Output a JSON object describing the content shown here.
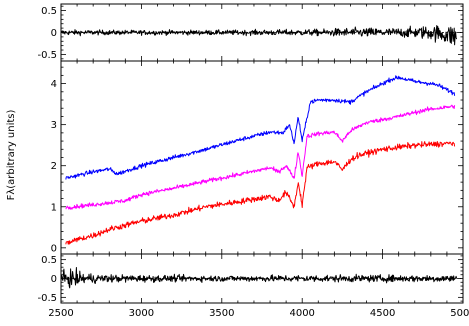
{
  "chart_data": [
    {
      "type": "line",
      "panel": "top-residual",
      "xlim": [
        2500,
        5000
      ],
      "ylim": [
        -0.65,
        0.65
      ],
      "yticks": [
        -0.5,
        0,
        0.5
      ],
      "ytick_labels": [
        "-0.5",
        "0",
        "0.5"
      ],
      "grid": false,
      "zero_line": "dotted",
      "series": [
        {
          "color": "#000000",
          "x": [
            2500,
            2750,
            3000,
            3250,
            3500,
            3750,
            4000,
            4150,
            4250,
            4400,
            4550,
            4700,
            4800,
            4900,
            4960
          ],
          "y": [
            0,
            0,
            0,
            0,
            0,
            0,
            0,
            0,
            0,
            0,
            0,
            0,
            0,
            -0.05,
            -0.1
          ],
          "amplitude": [
            0.08,
            0.07,
            0.07,
            0.07,
            0.07,
            0.08,
            0.09,
            0.1,
            0.13,
            0.14,
            0.13,
            0.16,
            0.22,
            0.28,
            0.38
          ]
        }
      ]
    },
    {
      "type": "line",
      "panel": "main",
      "ylabel": "Fλ(arbitrary units)",
      "xlim": [
        2500,
        5000
      ],
      "ylim": [
        -0.15,
        4.55
      ],
      "yticks": [
        0,
        1,
        2,
        3,
        4
      ],
      "ytick_labels": [
        "0",
        "1",
        "2",
        "3",
        "4"
      ],
      "grid": false,
      "series": [
        {
          "color": "#0000ff",
          "x": [
            2530,
            2700,
            2800,
            2850,
            3000,
            3200,
            3400,
            3600,
            3800,
            3880,
            3920,
            3950,
            3975,
            4000,
            4050,
            4100,
            4200,
            4300,
            4400,
            4450,
            4500,
            4550,
            4600,
            4700,
            4800,
            4850,
            4950
          ],
          "y": [
            1.7,
            1.85,
            1.92,
            1.8,
            2.0,
            2.2,
            2.4,
            2.62,
            2.82,
            2.8,
            3.0,
            2.55,
            3.2,
            2.6,
            3.55,
            3.6,
            3.6,
            3.55,
            3.8,
            3.9,
            4.0,
            4.1,
            4.15,
            4.05,
            4.0,
            3.95,
            3.75
          ],
          "noise": 0.05
        },
        {
          "color": "#ff00ff",
          "x": [
            2530,
            2700,
            2800,
            2900,
            3000,
            3200,
            3400,
            3600,
            3800,
            3850,
            3900,
            3950,
            3975,
            4000,
            4030,
            4100,
            4200,
            4250,
            4300,
            4350,
            4400,
            4600,
            4700,
            4800,
            4950
          ],
          "y": [
            0.98,
            1.05,
            1.1,
            1.15,
            1.3,
            1.45,
            1.62,
            1.78,
            1.95,
            1.85,
            2.0,
            1.7,
            2.35,
            1.75,
            2.72,
            2.78,
            2.82,
            2.6,
            2.85,
            2.95,
            3.05,
            3.2,
            3.3,
            3.38,
            3.45
          ],
          "noise": 0.05
        },
        {
          "color": "#ff0000",
          "x": [
            2530,
            2600,
            2700,
            2800,
            2900,
            3000,
            3200,
            3400,
            3600,
            3800,
            3850,
            3900,
            3950,
            3975,
            4000,
            4030,
            4100,
            4200,
            4250,
            4300,
            4350,
            4400,
            4500,
            4600,
            4700,
            4800,
            4950
          ],
          "y": [
            0.1,
            0.2,
            0.3,
            0.45,
            0.55,
            0.65,
            0.8,
            1.0,
            1.12,
            1.25,
            1.15,
            1.35,
            1.0,
            1.6,
            1.05,
            1.95,
            2.05,
            2.1,
            1.9,
            2.15,
            2.25,
            2.3,
            2.4,
            2.45,
            2.5,
            2.52,
            2.55
          ],
          "noise": 0.07
        }
      ]
    },
    {
      "type": "line",
      "panel": "bottom-residual",
      "xlabel": "",
      "xlim": [
        2500,
        5000
      ],
      "ylim": [
        -0.65,
        0.65
      ],
      "yticks": [
        -0.5,
        0,
        0.5
      ],
      "ytick_labels": [
        "-0.5",
        "0",
        "0.5"
      ],
      "xticks": [
        2500,
        3000,
        3500,
        4000,
        4500,
        5000
      ],
      "xtick_labels": [
        "2500",
        "3000",
        "3500",
        "4000",
        "4500",
        "5000"
      ],
      "grid": false,
      "zero_line": "dotted",
      "series": [
        {
          "color": "#000000",
          "x": [
            2500,
            2560,
            2650,
            2750,
            3000,
            3250,
            3500,
            3750,
            4000,
            4250,
            4500,
            4750,
            4960
          ],
          "y": [
            0,
            0,
            0,
            0,
            0,
            0,
            0,
            0,
            0,
            0,
            0,
            0,
            0
          ],
          "amplitude": [
            0.2,
            0.3,
            0.2,
            0.14,
            0.12,
            0.11,
            0.1,
            0.11,
            0.12,
            0.12,
            0.12,
            0.12,
            0.13
          ]
        }
      ]
    }
  ]
}
